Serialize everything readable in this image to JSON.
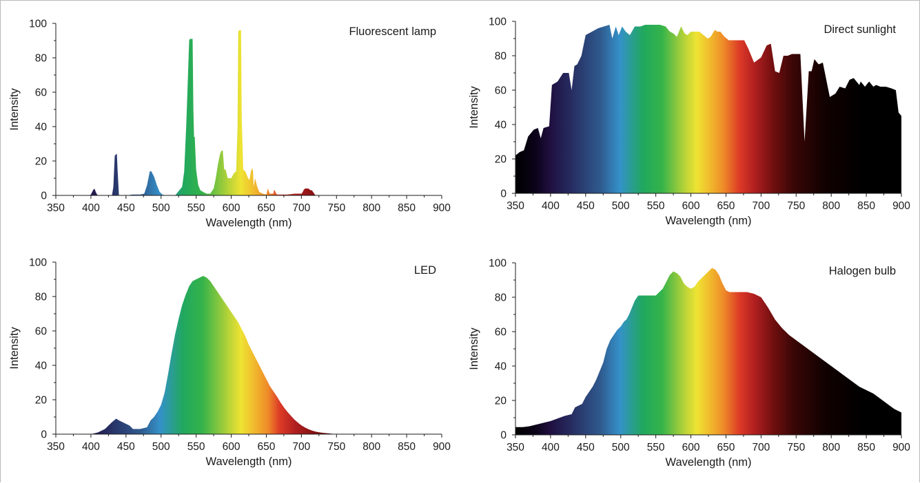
{
  "figure": {
    "colors": {
      "axis": "#1a1a1a",
      "border": "#b9b9b9",
      "dark_fill": "#000000"
    }
  },
  "chart_data": [
    {
      "type": "area",
      "title": "Fluorescent lamp",
      "xlabel": "Wavelength (nm)",
      "ylabel": "Intensity",
      "xlim": [
        350,
        900
      ],
      "ylim": [
        0,
        100
      ],
      "xticks": [
        "350",
        "400",
        "450",
        "500",
        "550",
        "600",
        "650",
        "700",
        "750",
        "800",
        "850",
        "900"
      ],
      "yticks": [
        "0",
        "20",
        "40",
        "60",
        "80",
        "100"
      ],
      "fill": "spectrum",
      "legend": "none",
      "grid": false,
      "x": [
        350,
        398,
        400,
        403,
        405,
        407,
        408,
        410,
        415,
        420,
        430,
        432,
        434,
        436,
        437,
        438,
        440,
        450,
        460,
        470,
        476,
        480,
        484,
        486,
        490,
        494,
        498,
        502,
        506,
        510,
        520,
        530,
        533,
        536,
        540,
        541,
        543,
        545,
        546,
        547,
        548,
        550,
        553,
        556,
        560,
        565,
        570,
        575,
        578,
        581,
        584,
        586,
        588,
        590,
        592,
        595,
        597,
        600,
        604,
        607,
        609,
        610,
        611,
        612,
        613,
        614,
        615,
        617,
        620,
        624,
        626,
        628,
        629,
        630,
        631,
        632,
        634,
        637,
        640,
        645,
        650,
        651,
        652,
        653,
        655,
        660,
        661,
        662,
        663,
        664,
        666,
        670,
        680,
        690,
        700,
        702,
        703,
        705,
        710,
        713,
        715,
        720,
        750,
        800,
        850,
        900
      ],
      "values": [
        0,
        0,
        0.5,
        3,
        4,
        2,
        1,
        0,
        0,
        0,
        0,
        5,
        23,
        24,
        24,
        15,
        0,
        0,
        0.5,
        0.5,
        1,
        6,
        14,
        14,
        11,
        6,
        2,
        0.5,
        0,
        0,
        0,
        5,
        14,
        42,
        90,
        91,
        91,
        91,
        50,
        34,
        34,
        15,
        6,
        3,
        2,
        1,
        1,
        4,
        10,
        18,
        24,
        26,
        26,
        15,
        15,
        10,
        10,
        10,
        13,
        14,
        40,
        95,
        96,
        96,
        96,
        96,
        45,
        15,
        14,
        10,
        9,
        14,
        15,
        16,
        14,
        5,
        10,
        5,
        2,
        1,
        0.5,
        2,
        4,
        3,
        1,
        1,
        3,
        3,
        2,
        1,
        0.5,
        0.5,
        0.5,
        1,
        1,
        2,
        3,
        4,
        4,
        3,
        3,
        0,
        0,
        0,
        0,
        0
      ]
    },
    {
      "type": "area",
      "title": "Direct sunlight",
      "xlabel": "Wavelength (nm)",
      "ylabel": "Intensity",
      "xlim": [
        350,
        900
      ],
      "ylim": [
        0,
        100
      ],
      "xticks": [
        "350",
        "400",
        "450",
        "500",
        "550",
        "600",
        "650",
        "700",
        "750",
        "800",
        "850",
        "900"
      ],
      "yticks": [
        "0",
        "20",
        "40",
        "60",
        "80",
        "100"
      ],
      "fill": "spectrum-to-black",
      "legend": "none",
      "grid": false,
      "x": [
        350,
        356,
        362,
        368,
        376,
        382,
        386,
        390,
        398,
        402,
        410,
        418,
        426,
        430,
        434,
        438,
        444,
        450,
        468,
        484,
        488,
        493,
        497,
        502,
        507,
        513,
        520,
        528,
        535,
        545,
        556,
        564,
        570,
        575,
        580,
        586,
        591,
        595,
        600,
        606,
        612,
        618,
        624,
        628,
        634,
        638,
        642,
        648,
        654,
        660,
        668,
        676,
        682,
        690,
        700,
        708,
        714,
        720,
        726,
        732,
        738,
        744,
        748,
        756,
        762,
        768,
        772,
        776,
        782,
        788,
        798,
        806,
        812,
        820,
        826,
        832,
        840,
        842,
        848,
        854,
        860,
        864,
        870,
        878,
        886,
        892,
        896,
        900
      ],
      "values": [
        22,
        24,
        25,
        33,
        37,
        38,
        32,
        38,
        39,
        63,
        65,
        70,
        70,
        60,
        74,
        75,
        80,
        92,
        96,
        98,
        90,
        97,
        92,
        97,
        94,
        92,
        97,
        97,
        98,
        98,
        98,
        97,
        94,
        93,
        91,
        97,
        93,
        92,
        94,
        94,
        94,
        92,
        90,
        91,
        95,
        94,
        94,
        91,
        89,
        89,
        89,
        89,
        84,
        76,
        79,
        86,
        87,
        71,
        70,
        80,
        80,
        81,
        81,
        81,
        30,
        71,
        71,
        78,
        75,
        76,
        56,
        58,
        62,
        61,
        66,
        67,
        63,
        65,
        62,
        65,
        62,
        63,
        62,
        62,
        61,
        60,
        47,
        45
      ]
    },
    {
      "type": "area",
      "title": "LED",
      "xlabel": "Wavelength (nm)",
      "ylabel": "Intensity",
      "xlim": [
        350,
        900
      ],
      "ylim": [
        0,
        100
      ],
      "xticks": [
        "350",
        "400",
        "450",
        "500",
        "550",
        "600",
        "650",
        "700",
        "750",
        "800",
        "850",
        "900"
      ],
      "yticks": [
        "0",
        "20",
        "40",
        "60",
        "80",
        "100"
      ],
      "fill": "spectrum",
      "legend": "none",
      "grid": false,
      "x": [
        350,
        400,
        405,
        410,
        415,
        420,
        425,
        430,
        436,
        440,
        445,
        450,
        455,
        460,
        465,
        470,
        475,
        480,
        485,
        490,
        495,
        500,
        505,
        510,
        515,
        520,
        525,
        530,
        535,
        540,
        545,
        550,
        555,
        560,
        565,
        570,
        575,
        580,
        585,
        590,
        595,
        600,
        605,
        610,
        615,
        620,
        625,
        630,
        635,
        640,
        645,
        650,
        655,
        660,
        665,
        670,
        675,
        680,
        685,
        690,
        695,
        700,
        705,
        710,
        715,
        720,
        725,
        730,
        735,
        740,
        745,
        750,
        755,
        760,
        800,
        850,
        900
      ],
      "values": [
        0,
        0,
        0.5,
        1,
        2,
        3,
        5,
        7,
        9,
        8,
        7,
        6,
        5,
        3,
        3,
        3,
        3.5,
        4,
        8,
        10,
        13,
        17,
        24,
        35,
        47,
        58,
        67,
        75,
        81,
        86,
        89,
        90,
        91,
        92,
        91,
        89,
        86,
        83,
        80,
        77,
        74,
        71,
        68,
        65,
        61,
        57,
        52,
        48,
        44,
        40,
        36,
        32,
        28,
        25,
        22,
        18.6,
        15.6,
        13,
        10.7,
        8.5,
        6.7,
        5.1,
        3.9,
        2.9,
        2.1,
        1.5,
        1.1,
        0.8,
        0.6,
        0.4,
        0.2,
        0.1,
        0,
        0,
        0,
        0,
        0
      ]
    },
    {
      "type": "area",
      "title": "Halogen bulb",
      "xlabel": "Wavelength (nm)",
      "ylabel": "Intensity",
      "xlim": [
        350,
        900
      ],
      "ylim": [
        0,
        100
      ],
      "xticks": [
        "350",
        "400",
        "450",
        "500",
        "550",
        "600",
        "650",
        "700",
        "750",
        "800",
        "850",
        "900"
      ],
      "yticks": [
        "0",
        "20",
        "40",
        "60",
        "80",
        "100"
      ],
      "fill": "spectrum-to-black",
      "legend": "none",
      "grid": false,
      "x": [
        350,
        360,
        370,
        380,
        390,
        400,
        410,
        420,
        430,
        435,
        440,
        445,
        450,
        455,
        460,
        465,
        470,
        475,
        480,
        485,
        490,
        495,
        500,
        505,
        508,
        512,
        516,
        520,
        525,
        530,
        540,
        550,
        555,
        560,
        565,
        570,
        575,
        580,
        585,
        590,
        595,
        600,
        605,
        610,
        615,
        620,
        625,
        630,
        635,
        640,
        645,
        650,
        655,
        660,
        665,
        670,
        680,
        690,
        700,
        710,
        720,
        730,
        740,
        750,
        760,
        770,
        780,
        790,
        800,
        810,
        820,
        830,
        840,
        850,
        860,
        870,
        880,
        890,
        900
      ],
      "values": [
        4.5,
        4.5,
        5,
        6,
        7,
        8,
        9.5,
        11,
        12,
        16,
        17,
        18,
        22,
        25,
        28,
        32,
        37,
        42,
        50,
        55,
        58,
        61,
        63,
        66,
        67,
        70,
        74,
        78,
        81,
        81,
        81,
        81,
        83,
        85,
        89,
        93,
        95,
        94,
        92,
        88,
        86,
        85,
        86,
        89,
        91,
        93,
        95,
        97,
        96,
        93,
        88,
        84,
        83,
        83,
        83,
        83,
        83,
        82,
        80,
        74,
        67,
        62,
        58,
        55,
        52,
        49,
        46,
        43,
        40,
        37,
        34,
        31,
        28,
        26,
        24,
        21,
        18,
        15,
        13
      ]
    }
  ]
}
